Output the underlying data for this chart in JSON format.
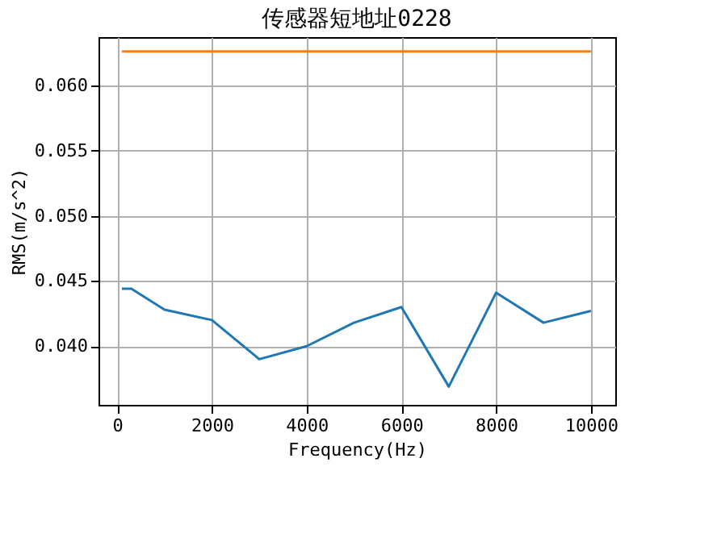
{
  "chart_data": {
    "type": "line",
    "title": "传感器短地址0228",
    "xlabel": "Frequency(Hz)",
    "ylabel": "RMS(m/s^2)",
    "x": [
      100,
      300,
      1000,
      2000,
      3000,
      4000,
      5000,
      6000,
      7000,
      8000,
      9000,
      10000
    ],
    "series": [
      {
        "color": "#1f77b4",
        "values": [
          0.0444,
          0.0444,
          0.0428,
          0.042,
          0.039,
          0.04,
          0.0418,
          0.043,
          0.0369,
          0.0441,
          0.0418,
          0.0427
        ]
      },
      {
        "color": "#ff7f0e",
        "values": [
          0.0626,
          0.0626,
          0.0626,
          0.0626,
          0.0626,
          0.0626,
          0.0626,
          0.0626,
          0.0626,
          0.0626,
          0.0626,
          0.0626
        ]
      }
    ],
    "xlim": [
      -394,
      10514
    ],
    "ylim": [
      0.0355,
      0.0637
    ],
    "xticks": [
      0,
      2000,
      4000,
      6000,
      8000,
      10000
    ],
    "yticks": [
      {
        "value": 0.04,
        "label": "0.040"
      },
      {
        "value": 0.045,
        "label": "0.045"
      },
      {
        "value": 0.05,
        "label": "0.050"
      },
      {
        "value": 0.055,
        "label": "0.055"
      },
      {
        "value": 0.06,
        "label": "0.060"
      }
    ],
    "grid": true,
    "line_style": "solid",
    "marker": "none"
  }
}
